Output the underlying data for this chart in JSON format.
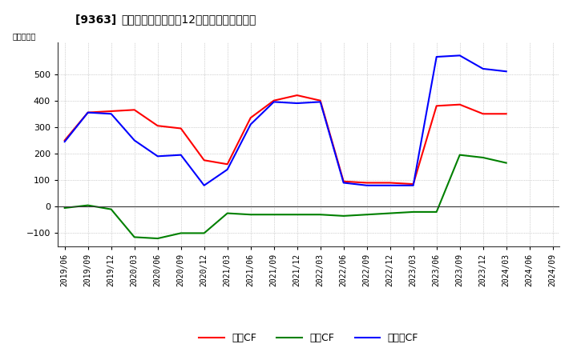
{
  "title": "[鍣] キャッシュフローの12か月移動合計の推移",
  "title_prefix": "[9363] ",
  "title_main": "キャッシュフローの12か月移動合計の推移",
  "ylabel": "（百万円）",
  "ylim": [
    -150,
    620
  ],
  "yticks": [
    -100,
    0,
    100,
    200,
    300,
    400,
    500
  ],
  "background_color": "#ffffff",
  "grid_color": "#aaaaaa",
  "dates": [
    "2019/06",
    "2019/09",
    "2019/12",
    "2020/03",
    "2020/06",
    "2020/09",
    "2020/12",
    "2021/03",
    "2021/06",
    "2021/09",
    "2021/12",
    "2022/03",
    "2022/06",
    "2022/09",
    "2022/12",
    "2023/03",
    "2023/06",
    "2023/09",
    "2023/12",
    "2024/03",
    "2024/06",
    "2024/09"
  ],
  "eigyo_cf": [
    250,
    355,
    360,
    365,
    305,
    295,
    175,
    160,
    335,
    400,
    420,
    400,
    95,
    90,
    90,
    85,
    380,
    385,
    350,
    350,
    null,
    null
  ],
  "toshi_cf": [
    -5,
    5,
    -10,
    -115,
    -120,
    -100,
    -100,
    -25,
    -30,
    -30,
    -30,
    -30,
    -35,
    -30,
    -25,
    -20,
    -20,
    195,
    185,
    165,
    null,
    null
  ],
  "free_cf": [
    245,
    355,
    350,
    250,
    190,
    195,
    80,
    140,
    310,
    395,
    390,
    395,
    90,
    80,
    80,
    80,
    565,
    570,
    520,
    510,
    null,
    null
  ],
  "eigyo_color": "#ff0000",
  "toshi_color": "#008000",
  "free_color": "#0000ff",
  "legend_labels": [
    "営業CF",
    "投資CF",
    "フリーCF"
  ]
}
